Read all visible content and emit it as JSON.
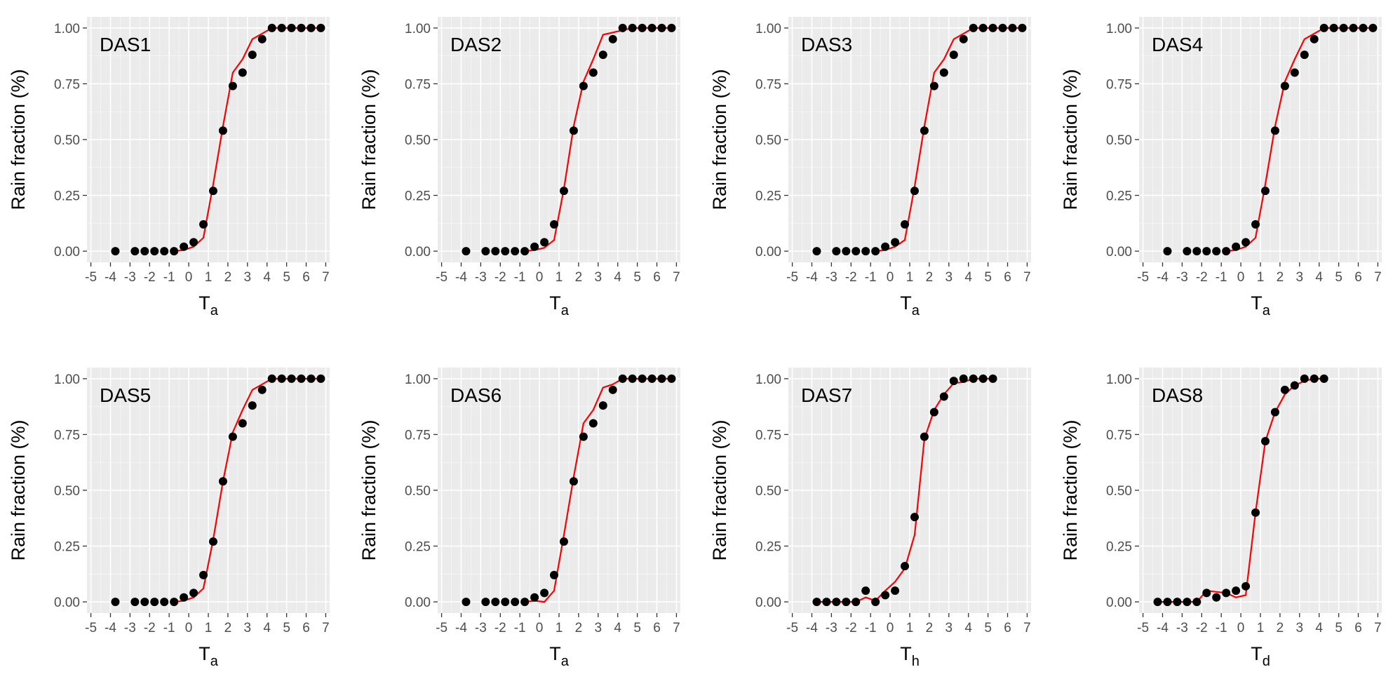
{
  "colors": {
    "panel_background": "#ebebeb",
    "grid_major": "#ffffff",
    "points": "#000000",
    "fit_line": "#ff0000",
    "tick_label": "#4d4d4d"
  },
  "chart_data": [
    {
      "type": "scatter",
      "label": "DAS1",
      "xlabel_main": "T",
      "xlabel_sub": "a",
      "ylabel": "Rain fraction (%)",
      "xlim": [
        -5.2,
        7.2
      ],
      "ylim": [
        -0.05,
        1.05
      ],
      "xticks": [
        -5,
        -4,
        -3,
        -2,
        -1,
        0,
        1,
        2,
        3,
        4,
        5,
        6,
        7
      ],
      "yticks": [
        0.0,
        0.25,
        0.5,
        0.75,
        1.0
      ],
      "ytick_labels": [
        "0.00",
        "0.25",
        "0.50",
        "0.75",
        "1.00"
      ],
      "grid": true,
      "points": {
        "x": [
          -3.75,
          -2.75,
          -2.25,
          -1.75,
          -1.25,
          -0.75,
          -0.25,
          0.25,
          0.75,
          1.25,
          1.75,
          2.25,
          2.75,
          3.25,
          3.75,
          4.25,
          4.75,
          5.25,
          5.75,
          6.25,
          6.75
        ],
        "y": [
          0,
          0,
          0,
          0,
          0,
          0,
          0.02,
          0.04,
          0.12,
          0.27,
          0.54,
          0.74,
          0.8,
          0.88,
          0.95,
          1,
          1,
          1,
          1,
          1,
          1
        ]
      },
      "fit": {
        "x": [
          -0.75,
          -0.25,
          0.25,
          0.75,
          1.25,
          1.75,
          2.25,
          2.75,
          3.25,
          3.75,
          4.25,
          4.75,
          5.25,
          5.75,
          6.25,
          6.75
        ],
        "y": [
          0,
          0.005,
          0.02,
          0.06,
          0.3,
          0.56,
          0.8,
          0.86,
          0.95,
          0.975,
          1,
          1,
          1,
          1,
          1,
          1
        ]
      }
    },
    {
      "type": "scatter",
      "label": "DAS2",
      "xlabel_main": "T",
      "xlabel_sub": "a",
      "ylabel": "Rain fraction (%)",
      "xlim": [
        -5.2,
        7.2
      ],
      "ylim": [
        -0.05,
        1.05
      ],
      "xticks": [
        -5,
        -4,
        -3,
        -2,
        -1,
        0,
        1,
        2,
        3,
        4,
        5,
        6,
        7
      ],
      "yticks": [
        0.0,
        0.25,
        0.5,
        0.75,
        1.0
      ],
      "ytick_labels": [
        "0.00",
        "0.25",
        "0.50",
        "0.75",
        "1.00"
      ],
      "grid": true,
      "points": {
        "x": [
          -3.75,
          -2.75,
          -2.25,
          -1.75,
          -1.25,
          -0.75,
          -0.25,
          0.25,
          0.75,
          1.25,
          1.75,
          2.25,
          2.75,
          3.25,
          3.75,
          4.25,
          4.75,
          5.25,
          5.75,
          6.25,
          6.75
        ],
        "y": [
          0,
          0,
          0,
          0,
          0,
          0,
          0.02,
          0.04,
          0.12,
          0.27,
          0.54,
          0.74,
          0.8,
          0.88,
          0.95,
          1,
          1,
          1,
          1,
          1,
          1
        ]
      },
      "fit": {
        "x": [
          -0.75,
          -0.25,
          0.25,
          0.75,
          1.25,
          1.75,
          2.25,
          2.75,
          3.25,
          3.75,
          4.25,
          4.75,
          5.25,
          5.75,
          6.25,
          6.75
        ],
        "y": [
          0,
          0.005,
          0.015,
          0.05,
          0.28,
          0.56,
          0.76,
          0.86,
          0.97,
          0.98,
          0.99,
          1,
          1,
          1,
          1,
          1
        ]
      }
    },
    {
      "type": "scatter",
      "label": "DAS3",
      "xlabel_main": "T",
      "xlabel_sub": "a",
      "ylabel": "Rain fraction (%)",
      "xlim": [
        -5.2,
        7.2
      ],
      "ylim": [
        -0.05,
        1.05
      ],
      "xticks": [
        -5,
        -4,
        -3,
        -2,
        -1,
        0,
        1,
        2,
        3,
        4,
        5,
        6,
        7
      ],
      "yticks": [
        0.0,
        0.25,
        0.5,
        0.75,
        1.0
      ],
      "ytick_labels": [
        "0.00",
        "0.25",
        "0.50",
        "0.75",
        "1.00"
      ],
      "grid": true,
      "points": {
        "x": [
          -3.75,
          -2.75,
          -2.25,
          -1.75,
          -1.25,
          -0.75,
          -0.25,
          0.25,
          0.75,
          1.25,
          1.75,
          2.25,
          2.75,
          3.25,
          3.75,
          4.25,
          4.75,
          5.25,
          5.75,
          6.25,
          6.75
        ],
        "y": [
          0,
          0,
          0,
          0,
          0,
          0,
          0.02,
          0.04,
          0.12,
          0.27,
          0.54,
          0.74,
          0.8,
          0.88,
          0.95,
          1,
          1,
          1,
          1,
          1,
          1
        ]
      },
      "fit": {
        "x": [
          -0.75,
          -0.25,
          0.25,
          0.75,
          1.25,
          1.75,
          2.25,
          2.75,
          3.25,
          3.75,
          4.25,
          4.75,
          5.25,
          5.75,
          6.25,
          6.75
        ],
        "y": [
          0,
          0.005,
          0.02,
          0.05,
          0.29,
          0.56,
          0.8,
          0.86,
          0.95,
          0.975,
          1,
          1,
          1,
          1,
          1,
          1
        ]
      }
    },
    {
      "type": "scatter",
      "label": "DAS4",
      "xlabel_main": "T",
      "xlabel_sub": "a",
      "ylabel": "Rain fraction (%)",
      "xlim": [
        -5.2,
        7.2
      ],
      "ylim": [
        -0.05,
        1.05
      ],
      "xticks": [
        -5,
        -4,
        -3,
        -2,
        -1,
        0,
        1,
        2,
        3,
        4,
        5,
        6,
        7
      ],
      "yticks": [
        0.0,
        0.25,
        0.5,
        0.75,
        1.0
      ],
      "ytick_labels": [
        "0.00",
        "0.25",
        "0.50",
        "0.75",
        "1.00"
      ],
      "grid": true,
      "points": {
        "x": [
          -3.75,
          -2.75,
          -2.25,
          -1.75,
          -1.25,
          -0.75,
          -0.25,
          0.25,
          0.75,
          1.25,
          1.75,
          2.25,
          2.75,
          3.25,
          3.75,
          4.25,
          4.75,
          5.25,
          5.75,
          6.25,
          6.75
        ],
        "y": [
          0,
          0,
          0,
          0,
          0,
          0,
          0.02,
          0.04,
          0.12,
          0.27,
          0.54,
          0.74,
          0.8,
          0.88,
          0.95,
          1,
          1,
          1,
          1,
          1,
          1
        ]
      },
      "fit": {
        "x": [
          -0.75,
          -0.25,
          0.25,
          0.75,
          1.25,
          1.75,
          2.25,
          2.75,
          3.25,
          3.75,
          4.25,
          4.75,
          5.25,
          5.75,
          6.25,
          6.75
        ],
        "y": [
          0,
          0.005,
          0.02,
          0.06,
          0.3,
          0.56,
          0.76,
          0.86,
          0.95,
          0.975,
          1,
          1,
          1,
          1,
          1,
          1
        ]
      }
    },
    {
      "type": "scatter",
      "label": "DAS5",
      "xlabel_main": "T",
      "xlabel_sub": "a",
      "ylabel": "Rain fraction (%)",
      "xlim": [
        -5.2,
        7.2
      ],
      "ylim": [
        -0.05,
        1.05
      ],
      "xticks": [
        -5,
        -4,
        -3,
        -2,
        -1,
        0,
        1,
        2,
        3,
        4,
        5,
        6,
        7
      ],
      "yticks": [
        0.0,
        0.25,
        0.5,
        0.75,
        1.0
      ],
      "ytick_labels": [
        "0.00",
        "0.25",
        "0.50",
        "0.75",
        "1.00"
      ],
      "grid": true,
      "points": {
        "x": [
          -3.75,
          -2.75,
          -2.25,
          -1.75,
          -1.25,
          -0.75,
          -0.25,
          0.25,
          0.75,
          1.25,
          1.75,
          2.25,
          2.75,
          3.25,
          3.75,
          4.25,
          4.75,
          5.25,
          5.75,
          6.25,
          6.75
        ],
        "y": [
          0,
          0,
          0,
          0,
          0,
          0,
          0.02,
          0.04,
          0.12,
          0.27,
          0.54,
          0.74,
          0.8,
          0.88,
          0.95,
          1,
          1,
          1,
          1,
          1,
          1
        ]
      },
      "fit": {
        "x": [
          -0.75,
          -0.25,
          0.25,
          0.75,
          1.25,
          1.75,
          2.25,
          2.75,
          3.25,
          3.75,
          4.25,
          4.75,
          5.25,
          5.75,
          6.25,
          6.75
        ],
        "y": [
          0,
          0.005,
          0.02,
          0.06,
          0.28,
          0.54,
          0.76,
          0.86,
          0.95,
          0.975,
          1,
          1,
          1,
          1,
          1,
          1
        ]
      }
    },
    {
      "type": "scatter",
      "label": "DAS6",
      "xlabel_main": "T",
      "xlabel_sub": "a",
      "ylabel": "Rain fraction (%)",
      "xlim": [
        -5.2,
        7.2
      ],
      "ylim": [
        -0.05,
        1.05
      ],
      "xticks": [
        -5,
        -4,
        -3,
        -2,
        -1,
        0,
        1,
        2,
        3,
        4,
        5,
        6,
        7
      ],
      "yticks": [
        0.0,
        0.25,
        0.5,
        0.75,
        1.0
      ],
      "ytick_labels": [
        "0.00",
        "0.25",
        "0.50",
        "0.75",
        "1.00"
      ],
      "grid": true,
      "points": {
        "x": [
          -3.75,
          -2.75,
          -2.25,
          -1.75,
          -1.25,
          -0.75,
          -0.25,
          0.25,
          0.75,
          1.25,
          1.75,
          2.25,
          2.75,
          3.25,
          3.75,
          4.25,
          4.75,
          5.25,
          5.75,
          6.25,
          6.75
        ],
        "y": [
          0,
          0,
          0,
          0,
          0,
          0,
          0.02,
          0.04,
          0.12,
          0.27,
          0.54,
          0.74,
          0.8,
          0.88,
          0.95,
          1,
          1,
          1,
          1,
          1,
          1
        ]
      },
      "fit": {
        "x": [
          -0.75,
          -0.25,
          0.25,
          0.75,
          1.25,
          1.75,
          2.25,
          2.75,
          3.25,
          3.75,
          4.25,
          4.75,
          5.25,
          5.75,
          6.25,
          6.75
        ],
        "y": [
          0,
          0.005,
          0.0,
          0.05,
          0.3,
          0.56,
          0.8,
          0.86,
          0.96,
          0.975,
          1,
          1,
          1,
          1,
          1,
          1
        ]
      }
    },
    {
      "type": "scatter",
      "label": "DAS7",
      "xlabel_main": "T",
      "xlabel_sub": "h",
      "ylabel": "Rain fraction (%)",
      "xlim": [
        -5.2,
        7.2
      ],
      "ylim": [
        -0.05,
        1.05
      ],
      "xticks": [
        -5,
        -4,
        -3,
        -2,
        -1,
        0,
        1,
        2,
        3,
        4,
        5,
        6,
        7
      ],
      "yticks": [
        0.0,
        0.25,
        0.5,
        0.75,
        1.0
      ],
      "ytick_labels": [
        "0.00",
        "0.25",
        "0.50",
        "0.75",
        "1.00"
      ],
      "grid": true,
      "points": {
        "x": [
          -3.75,
          -3.25,
          -2.75,
          -2.25,
          -1.75,
          -1.25,
          -0.75,
          -0.25,
          0.25,
          0.75,
          1.25,
          1.75,
          2.25,
          2.75,
          3.25,
          3.75,
          4.25,
          4.75,
          5.25
        ],
        "y": [
          0,
          0,
          0,
          0,
          0,
          0.05,
          0,
          0.03,
          0.05,
          0.16,
          0.38,
          0.74,
          0.85,
          0.92,
          0.99,
          1,
          1,
          1,
          1
        ]
      },
      "fit": {
        "x": [
          -3.75,
          -3.25,
          -2.75,
          -2.25,
          -1.75,
          -1.25,
          -0.75,
          -0.25,
          0.25,
          0.75,
          1.25,
          1.75,
          2.25,
          2.75,
          3.25,
          3.75,
          4.25,
          4.75,
          5.25
        ],
        "y": [
          0,
          0,
          0,
          0,
          0,
          0.02,
          0.005,
          0.05,
          0.09,
          0.15,
          0.3,
          0.73,
          0.86,
          0.93,
          0.98,
          0.985,
          1,
          1,
          1
        ]
      }
    },
    {
      "type": "scatter",
      "label": "DAS8",
      "xlabel_main": "T",
      "xlabel_sub": "d",
      "ylabel": "Rain fraction (%)",
      "xlim": [
        -5.2,
        7.2
      ],
      "ylim": [
        -0.05,
        1.05
      ],
      "xticks": [
        -5,
        -4,
        -3,
        -2,
        -1,
        0,
        1,
        2,
        3,
        4,
        5,
        6,
        7
      ],
      "yticks": [
        0.0,
        0.25,
        0.5,
        0.75,
        1.0
      ],
      "ytick_labels": [
        "0.00",
        "0.25",
        "0.50",
        "0.75",
        "1.00"
      ],
      "grid": true,
      "points": {
        "x": [
          -4.25,
          -3.75,
          -3.25,
          -2.75,
          -2.25,
          -1.75,
          -1.25,
          -0.75,
          -0.25,
          0.25,
          0.75,
          1.25,
          1.75,
          2.25,
          2.75,
          3.25,
          3.75,
          4.25
        ],
        "y": [
          0,
          0,
          0,
          0,
          0,
          0.04,
          0.02,
          0.04,
          0.05,
          0.07,
          0.4,
          0.72,
          0.85,
          0.95,
          0.97,
          1,
          1,
          1
        ]
      },
      "fit": {
        "x": [
          -4.25,
          -3.75,
          -3.25,
          -2.75,
          -2.25,
          -1.75,
          -1.25,
          -0.75,
          -0.25,
          0.25,
          0.75,
          1.25,
          1.75,
          2.25,
          2.75,
          3.25,
          3.75,
          4.25
        ],
        "y": [
          0,
          0,
          0,
          0,
          0,
          0.05,
          0.045,
          0.04,
          0.02,
          0.03,
          0.4,
          0.72,
          0.85,
          0.93,
          0.97,
          0.99,
          1,
          1
        ]
      }
    }
  ]
}
